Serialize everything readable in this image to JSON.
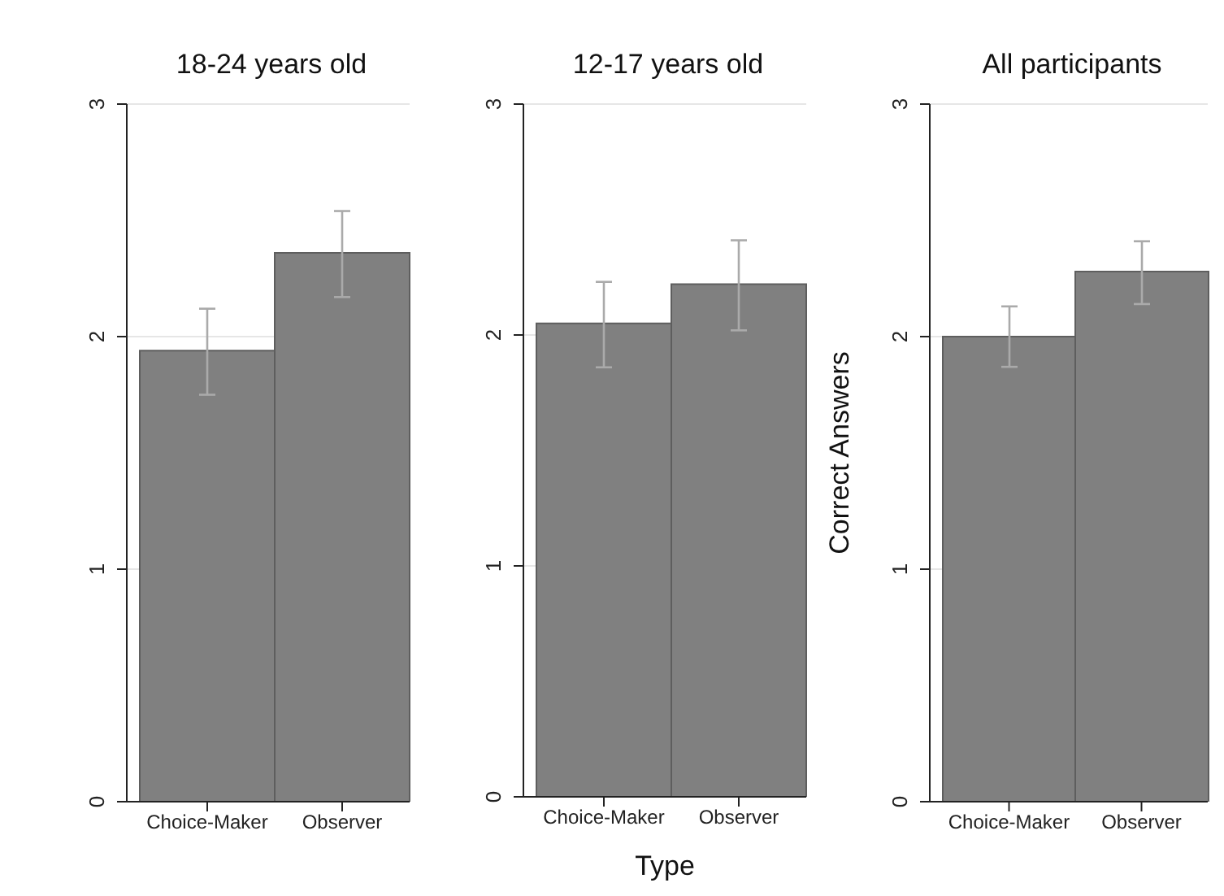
{
  "chart_data": [
    {
      "type": "bar",
      "title": "18-24 years old",
      "categories": [
        "Choice-Maker",
        "Observer"
      ],
      "values": [
        1.94,
        2.36
      ],
      "errors": [
        [
          1.75,
          2.12
        ],
        [
          2.17,
          2.54
        ]
      ],
      "color": "#808080",
      "ylim": [
        0,
        3
      ],
      "yticks": [
        0,
        1,
        2,
        3
      ],
      "grid": "y"
    },
    {
      "type": "bar",
      "title": "12-17 years old",
      "xlabel": "Type",
      "categories": [
        "Choice-Maker",
        "Observer"
      ],
      "values": [
        2.05,
        2.22
      ],
      "errors": [
        [
          1.86,
          2.23
        ],
        [
          2.02,
          2.41
        ]
      ],
      "color": "#808080",
      "ylim": [
        0,
        3
      ],
      "yticks": [
        0,
        1,
        2,
        3
      ],
      "grid": "y"
    },
    {
      "type": "bar",
      "title": "All participants",
      "ylabel": "Correct Answers",
      "categories": [
        "Choice-Maker",
        "Observer"
      ],
      "values": [
        2.0,
        2.28
      ],
      "errors": [
        [
          1.87,
          2.13
        ],
        [
          2.14,
          2.41
        ]
      ],
      "color": "#808080",
      "ylim": [
        0,
        3
      ],
      "yticks": [
        0,
        1,
        2,
        3
      ],
      "grid": "y"
    }
  ]
}
